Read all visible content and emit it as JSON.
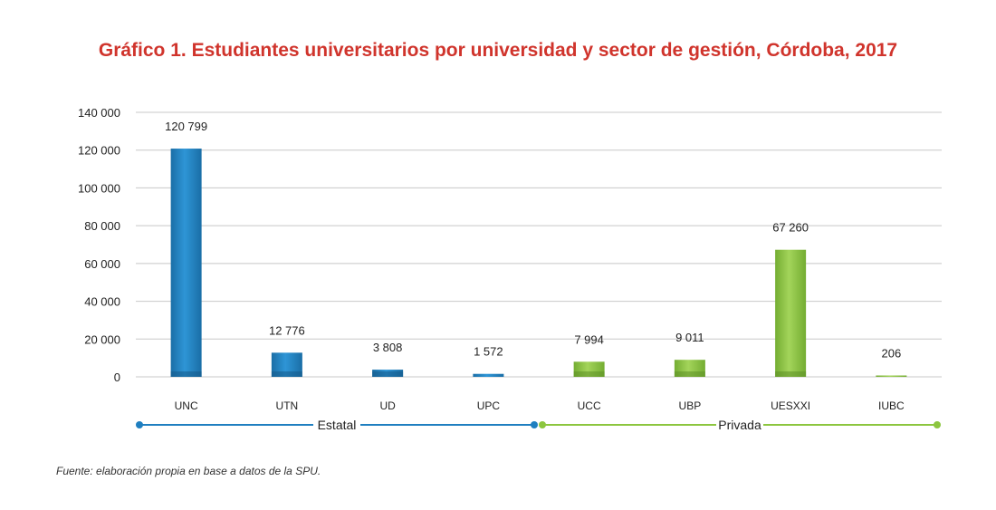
{
  "chart_data": {
    "type": "bar",
    "title": "Gráfico 1. Estudiantes universitarios por universidad y sector de gestión, Córdoba, 2017",
    "categories": [
      "UNC",
      "UTN",
      "UD",
      "UPC",
      "UCC",
      "UBP",
      "UESXXI",
      "IUBC"
    ],
    "values": [
      120799,
      12776,
      3808,
      1572,
      7994,
      9011,
      67260,
      206
    ],
    "value_labels": [
      "120 799",
      "12 776",
      "3 808",
      "1 572",
      "7 994",
      "9 011",
      "67 260",
      "206"
    ],
    "sector": [
      "Estatal",
      "Estatal",
      "Estatal",
      "Estatal",
      "Privada",
      "Privada",
      "Privada",
      "Privada"
    ],
    "ylim": [
      0,
      140000
    ],
    "yticks": [
      0,
      20000,
      40000,
      60000,
      80000,
      100000,
      120000,
      140000
    ],
    "ytick_labels": [
      "0",
      "20 000",
      "40 000",
      "60 000",
      "80 000",
      "100 000",
      "120 000",
      "140 000"
    ],
    "xlabel": "",
    "ylabel": "",
    "grid": true,
    "groups": [
      {
        "name": "Estatal",
        "color": "#1f7fc0",
        "count": 4
      },
      {
        "name": "Privada",
        "color": "#8cc63f",
        "count": 4
      }
    ],
    "colors": {
      "estatal": "#1f7fc0",
      "privada": "#8cc63f",
      "title": "#d0342c",
      "grid": "#c8c8c8"
    }
  },
  "source": "Fuente: elaboración propia en base a datos de la SPU."
}
